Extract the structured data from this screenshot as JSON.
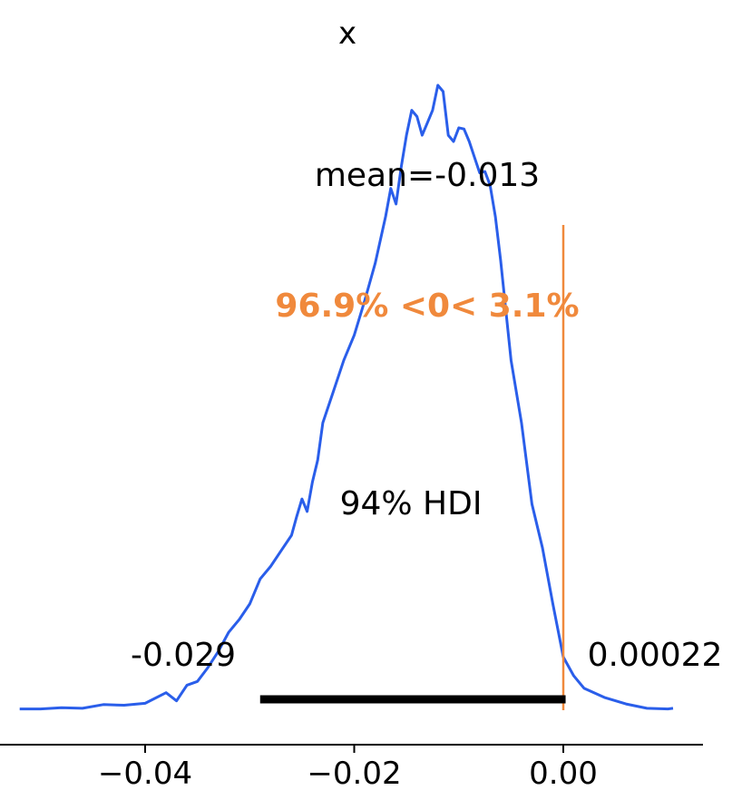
{
  "chart_data": {
    "type": "area",
    "title": "x",
    "xlabel": "",
    "ylabel": "",
    "xlim": [
      -0.0525,
      0.0132
    ],
    "ylim": [
      0,
      1
    ],
    "x_ticks": [
      -0.04,
      -0.02,
      0.0
    ],
    "x_tick_labels": [
      "−0.04",
      "−0.02",
      "0.00"
    ],
    "grid": false,
    "series": [
      {
        "color": "#2a5eea",
        "x": [
          -0.052,
          -0.05,
          -0.048,
          -0.046,
          -0.044,
          -0.042,
          -0.04,
          -0.038,
          -0.037,
          -0.036,
          -0.035,
          -0.034,
          -0.033,
          -0.032,
          -0.031,
          -0.03,
          -0.029,
          -0.028,
          -0.027,
          -0.026,
          -0.0255,
          -0.025,
          -0.0245,
          -0.024,
          -0.0235,
          -0.023,
          -0.022,
          -0.021,
          -0.02,
          -0.019,
          -0.018,
          -0.017,
          -0.0165,
          -0.016,
          -0.0155,
          -0.015,
          -0.0145,
          -0.014,
          -0.0135,
          -0.013,
          -0.0125,
          -0.012,
          -0.0115,
          -0.011,
          -0.0105,
          -0.01,
          -0.0095,
          -0.009,
          -0.0085,
          -0.008,
          -0.0075,
          -0.007,
          -0.0065,
          -0.006,
          -0.005,
          -0.004,
          -0.003,
          -0.002,
          -0.001,
          0.0,
          0.001,
          0.002,
          0.004,
          0.006,
          0.008,
          0.01,
          0.0105
        ],
        "y": [
          0.002,
          0.002,
          0.004,
          0.003,
          0.009,
          0.008,
          0.011,
          0.028,
          0.015,
          0.04,
          0.046,
          0.068,
          0.094,
          0.125,
          0.145,
          0.17,
          0.21,
          0.23,
          0.255,
          0.28,
          0.31,
          0.338,
          0.318,
          0.365,
          0.4,
          0.46,
          0.51,
          0.56,
          0.6,
          0.655,
          0.715,
          0.79,
          0.835,
          0.81,
          0.87,
          0.92,
          0.96,
          0.95,
          0.92,
          0.94,
          0.96,
          1.0,
          0.99,
          0.92,
          0.91,
          0.932,
          0.93,
          0.91,
          0.885,
          0.86,
          0.862,
          0.84,
          0.79,
          0.72,
          0.56,
          0.46,
          0.33,
          0.26,
          0.17,
          0.085,
          0.055,
          0.035,
          0.02,
          0.01,
          0.003,
          0.002,
          0.003
        ]
      }
    ],
    "reference_line": {
      "x": 0.0,
      "color": "#f0893c",
      "label": "96.9% <0< 3.1%"
    },
    "mean_label": "mean=-0.013",
    "hdi": {
      "label": "94% HDI",
      "low": -0.029,
      "high": 0.00022,
      "low_label": "-0.029",
      "high_label": "0.00022",
      "color": "#000000"
    }
  }
}
